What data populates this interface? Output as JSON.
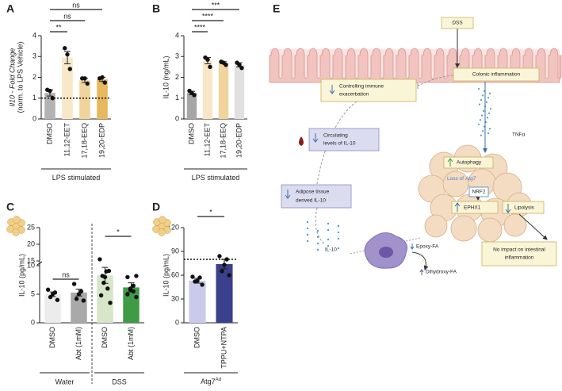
{
  "chart_data": [
    {
      "type": "bar",
      "panel_label": "A",
      "ylabel": [
        "Il10 - Fold Change",
        "(norm. to LPS Vehicle)"
      ],
      "categories": [
        "DMSO",
        "11,12-EET",
        "17,18-EEQ",
        "19,20-EDP"
      ],
      "values": [
        1.25,
        2.95,
        1.85,
        1.9
      ],
      "errors": [
        0.15,
        0.3,
        0.1,
        0.1
      ],
      "points": [
        [
          1.0,
          1.35,
          1.4
        ],
        [
          2.4,
          3.1,
          3.4
        ],
        [
          1.7,
          1.95,
          1.95
        ],
        [
          1.75,
          2.0,
          1.95
        ]
      ],
      "colors": [
        "#b3b3b3",
        "#f8e8c8",
        "#f0d49c",
        "#e6b95e"
      ],
      "ylim": [
        0,
        4
      ],
      "yticks": [
        0,
        1,
        2,
        3,
        4
      ],
      "reference_line": 1,
      "significance": [
        "**",
        "ns",
        "ns"
      ],
      "xlabel": "LPS stimulated"
    },
    {
      "type": "bar",
      "panel_label": "B",
      "ylabel": [
        "IL-10 (ng/mL)"
      ],
      "categories": [
        "DMSO",
        "11,12-EET",
        "17,18-EEQ",
        "19,20-EDP"
      ],
      "values": [
        1.25,
        2.8,
        2.7,
        2.6
      ],
      "errors": [
        0.08,
        0.15,
        0.05,
        0.1
      ],
      "points": [
        [
          1.15,
          1.25,
          1.35
        ],
        [
          2.5,
          2.85,
          2.95
        ],
        [
          2.6,
          2.7,
          2.75
        ],
        [
          2.45,
          2.6,
          2.7
        ]
      ],
      "colors": [
        "#a6a6a6",
        "#f8e6c6",
        "#f0d49c",
        "#e0e0e0"
      ],
      "ylim": [
        0,
        4
      ],
      "yticks": [
        0,
        1,
        2,
        3,
        4
      ],
      "significance": [
        "****",
        "****",
        "***"
      ],
      "xlabel": "LPS stimulated"
    },
    {
      "type": "bar",
      "panel_label": "C",
      "ylabel": [
        "IL-10 (pg/mL)"
      ],
      "categories": [
        "DMSO",
        "Abt (1mM)",
        "DMSO",
        "Abt (1mM)"
      ],
      "values": [
        5,
        5.3,
        8.3,
        6.2
      ],
      "errors": [
        0.4,
        0.6,
        1.4,
        0.8
      ],
      "points": [
        [
          4,
          4.5,
          5,
          5.3,
          5.8
        ],
        [
          3.9,
          4.2,
          5,
          5.5,
          6.8
        ],
        [
          3.5,
          4.8,
          6,
          7,
          8,
          9,
          10.5,
          12,
          15.5
        ],
        [
          4.5,
          5,
          5.5,
          5.8,
          6,
          6.5,
          8,
          10.5
        ]
      ],
      "colors": [
        "#ececec",
        "#a9a9a9",
        "#d7e5c9",
        "#3f9b45"
      ],
      "ylim": [
        0,
        25
      ],
      "axis_break": [
        10,
        15
      ],
      "yticks": [
        0,
        5,
        10,
        15,
        20,
        25
      ],
      "significance": [
        "ns",
        "*"
      ],
      "groups": [
        "Water",
        "DSS"
      ]
    },
    {
      "type": "bar",
      "panel_label": "D",
      "ylabel": [
        "IL-10 (pg/mL)"
      ],
      "categories": [
        "DMSO",
        "TPPU+NTPA"
      ],
      "values": [
        53,
        74
      ],
      "errors": [
        3,
        6
      ],
      "points": [
        [
          48,
          52,
          53,
          57,
          58
        ],
        [
          60,
          65,
          73,
          80,
          84
        ]
      ],
      "colors": [
        "#cacaea",
        "#3b408c"
      ],
      "ylim": [
        0,
        120
      ],
      "yticks": [
        0,
        30,
        60,
        90,
        120
      ],
      "reference_line": 80,
      "significance": [
        "*"
      ],
      "xlabel": "Atg7",
      "xlabel_sup": "Ad"
    }
  ],
  "diagram": {
    "panel_label": "E",
    "dss": "DSS",
    "colonic_inflammation": "Colonic inflammation",
    "controlling": [
      "Controlling immune",
      "exacerbation"
    ],
    "tnf": "TNFα",
    "circulating": [
      "Circulating",
      "levels of IL-10"
    ],
    "adipose": [
      "Adipose tissue",
      "derived IL-10"
    ],
    "autophagy": "Autophagy",
    "loss": [
      "Loss of",
      "Atg7"
    ],
    "nrf2": "NRF2",
    "ephx1": "EPHX1",
    "lipolysis": "Lipolysis",
    "epoxy": "Epoxy-FA",
    "dihydroxy": "Dihydroxy-FA",
    "il10": "IL-10",
    "no_impact": [
      "No impact on intestinal",
      "inflammation"
    ]
  }
}
